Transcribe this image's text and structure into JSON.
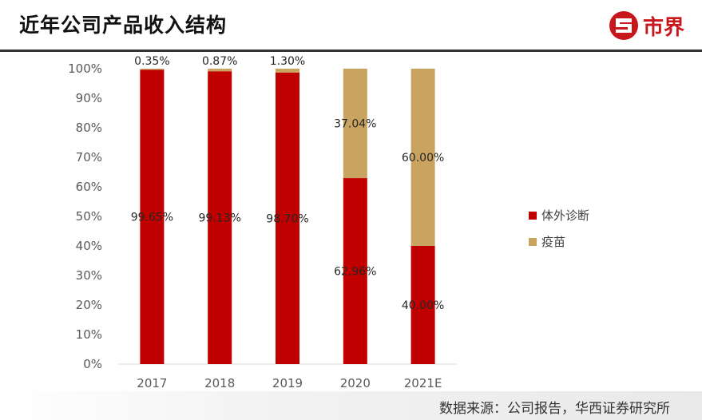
{
  "header": {
    "title": "近年公司产品收入结构",
    "logo_text": "市界"
  },
  "footer": {
    "source": "数据来源：公司报告，华西证券研究所"
  },
  "colors": {
    "diagnostics": "#c00000",
    "vaccine": "#c9a461",
    "logo": "#c8161d"
  },
  "chart_data": {
    "type": "bar",
    "stacked": true,
    "categories": [
      "2017",
      "2018",
      "2019",
      "2020",
      "2021E"
    ],
    "series": [
      {
        "name": "体外诊断",
        "values": [
          99.65,
          99.13,
          98.7,
          62.96,
          40.0
        ],
        "labels": [
          "99.65%",
          "99.13%",
          "98.70%",
          "62.96%",
          "40.00%"
        ],
        "color": "#c00000"
      },
      {
        "name": "疫苗",
        "values": [
          0.35,
          0.87,
          1.3,
          37.04,
          60.0
        ],
        "labels": [
          "0.35%",
          "0.87%",
          "1.30%",
          "37.04%",
          "60.00%"
        ],
        "color": "#c9a461"
      }
    ],
    "ylim": [
      0,
      100
    ],
    "yticks": [
      "0%",
      "10%",
      "20%",
      "30%",
      "40%",
      "50%",
      "60%",
      "70%",
      "80%",
      "90%",
      "100%"
    ],
    "legend_position": "right",
    "grid": false
  }
}
